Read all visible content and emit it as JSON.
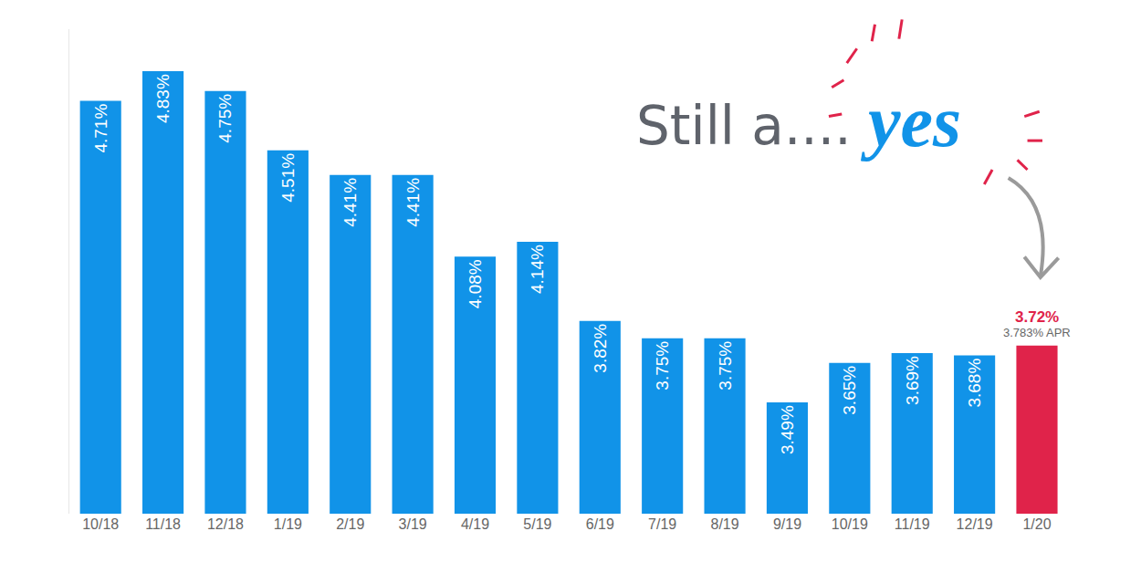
{
  "chart_data": {
    "type": "bar",
    "categories": [
      "10/18",
      "11/18",
      "12/18",
      "1/19",
      "2/19",
      "3/19",
      "4/19",
      "5/19",
      "6/19",
      "7/19",
      "8/19",
      "9/19",
      "10/19",
      "11/19",
      "12/19",
      "1/20"
    ],
    "values": [
      4.71,
      4.83,
      4.75,
      4.51,
      4.41,
      4.41,
      4.08,
      4.14,
      3.82,
      3.75,
      3.75,
      3.49,
      3.65,
      3.69,
      3.68,
      3.72
    ],
    "value_labels": [
      "4.71%",
      "4.83%",
      "4.75%",
      "4.51%",
      "4.41%",
      "4.41%",
      "4.08%",
      "4.14%",
      "3.82%",
      "3.75%",
      "3.75%",
      "3.49%",
      "3.65%",
      "3.69%",
      "3.68%",
      "3.72%"
    ],
    "colors": [
      "#1193e8",
      "#1193e8",
      "#1193e8",
      "#1193e8",
      "#1193e8",
      "#1193e8",
      "#1193e8",
      "#1193e8",
      "#1193e8",
      "#1193e8",
      "#1193e8",
      "#1193e8",
      "#1193e8",
      "#1193e8",
      "#1193e8",
      "#e0234a"
    ],
    "annotations": [
      "Still a....",
      "yes",
      "3.783% APR"
    ],
    "ylim": [
      3.04,
      5.0
    ],
    "yticks": [],
    "data_labels": true,
    "tick_labels": "x",
    "grid": false
  }
}
